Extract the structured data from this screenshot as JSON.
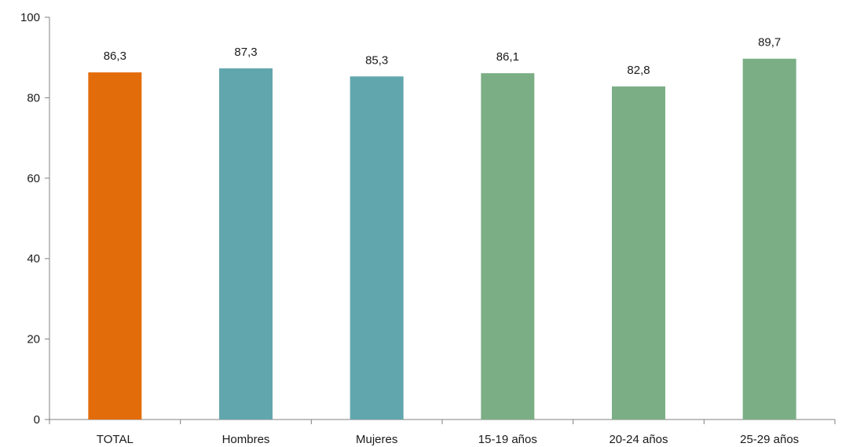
{
  "chart_data": {
    "type": "bar",
    "categories": [
      "TOTAL",
      "Hombres",
      "Mujeres",
      "15-19 años",
      "20-24 años",
      "25-29 años"
    ],
    "values": [
      86.3,
      87.3,
      85.3,
      86.1,
      82.8,
      89.7
    ],
    "data_labels": [
      "86,3",
      "87,3",
      "85,3",
      "86,1",
      "82,8",
      "89,7"
    ],
    "bar_colors": [
      "#E36C0A",
      "#62A6AD",
      "#62A6AD",
      "#7BAE85",
      "#7BAE85",
      "#7BAE85"
    ],
    "ylim": [
      0,
      100
    ],
    "yticks": [
      0,
      20,
      40,
      60,
      80,
      100
    ],
    "title": "",
    "xlabel": "",
    "ylabel": "",
    "grid": false,
    "legend": "none"
  }
}
